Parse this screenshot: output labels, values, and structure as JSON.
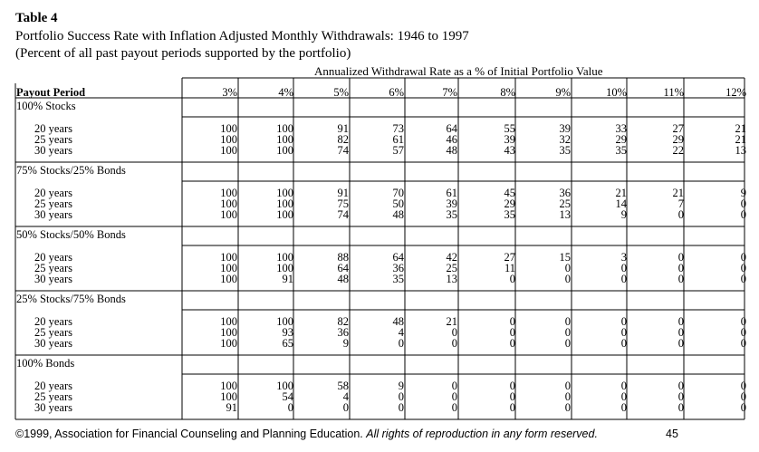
{
  "table_label": "Table 4",
  "title": "Portfolio Success Rate with Inflation Adjusted Monthly Withdrawals: 1946 to 1997",
  "subtitle": "(Percent of all past payout periods supported by the portfolio)",
  "span_header": "Annualized Withdrawal Rate as a % of Initial Portfolio Value",
  "row_header": "Payout Period",
  "columns": [
    "3%",
    "4%",
    "5%",
    "6%",
    "7%",
    "8%",
    "9%",
    "10%",
    "11%",
    "12%"
  ],
  "groups": [
    {
      "name": "100% Stocks",
      "rows": [
        {
          "label": "20 years",
          "values": [
            "100",
            "100",
            "91",
            "73",
            "64",
            "55",
            "39",
            "33",
            "27",
            "21"
          ]
        },
        {
          "label": "25 years",
          "values": [
            "100",
            "100",
            "82",
            "61",
            "46",
            "39",
            "32",
            "29",
            "29",
            "21"
          ]
        },
        {
          "label": "30 years",
          "values": [
            "100",
            "100",
            "74",
            "57",
            "48",
            "43",
            "35",
            "35",
            "22",
            "13"
          ]
        }
      ]
    },
    {
      "name": "75% Stocks/25% Bonds",
      "rows": [
        {
          "label": "20 years",
          "values": [
            "100",
            "100",
            "91",
            "70",
            "61",
            "45",
            "36",
            "21",
            "21",
            "9"
          ]
        },
        {
          "label": "25 years",
          "values": [
            "100",
            "100",
            "75",
            "50",
            "39",
            "29",
            "25",
            "14",
            "7",
            "0"
          ]
        },
        {
          "label": "30 years",
          "values": [
            "100",
            "100",
            "74",
            "48",
            "35",
            "35",
            "13",
            "9",
            "0",
            "0"
          ]
        }
      ]
    },
    {
      "name": "50% Stocks/50% Bonds",
      "rows": [
        {
          "label": "20 years",
          "values": [
            "100",
            "100",
            "88",
            "64",
            "42",
            "27",
            "15",
            "3",
            "0",
            "0"
          ]
        },
        {
          "label": "25 years",
          "values": [
            "100",
            "100",
            "64",
            "36",
            "25",
            "11",
            "0",
            "0",
            "0",
            "0"
          ]
        },
        {
          "label": "30 years",
          "values": [
            "100",
            "91",
            "48",
            "35",
            "13",
            "0",
            "0",
            "0",
            "0",
            "0"
          ]
        }
      ]
    },
    {
      "name": "25% Stocks/75% Bonds",
      "rows": [
        {
          "label": "20 years",
          "values": [
            "100",
            "100",
            "82",
            "48",
            "21",
            "0",
            "0",
            "0",
            "0",
            "0"
          ]
        },
        {
          "label": "25 years",
          "values": [
            "100",
            "93",
            "36",
            "4",
            "0",
            "0",
            "0",
            "0",
            "0",
            "0"
          ]
        },
        {
          "label": "30 years",
          "values": [
            "100",
            "65",
            "9",
            "0",
            "0",
            "0",
            "0",
            "0",
            "0",
            "0"
          ]
        }
      ]
    },
    {
      "name": "100% Bonds",
      "rows": [
        {
          "label": "20 years",
          "values": [
            "100",
            "100",
            "58",
            "9",
            "0",
            "0",
            "0",
            "0",
            "0",
            "0"
          ]
        },
        {
          "label": "25 years",
          "values": [
            "100",
            "54",
            "4",
            "0",
            "0",
            "0",
            "0",
            "0",
            "0",
            "0"
          ]
        },
        {
          "label": "30 years",
          "values": [
            "91",
            "0",
            "0",
            "0",
            "0",
            "0",
            "0",
            "0",
            "0",
            "0"
          ]
        }
      ]
    }
  ],
  "footer": {
    "copyright_symbol": "©",
    "text": "1999, Association for Financial Counseling and Planning Education.",
    "rights": "All rights of reproduction in any form reserved.",
    "page_number": "45"
  }
}
